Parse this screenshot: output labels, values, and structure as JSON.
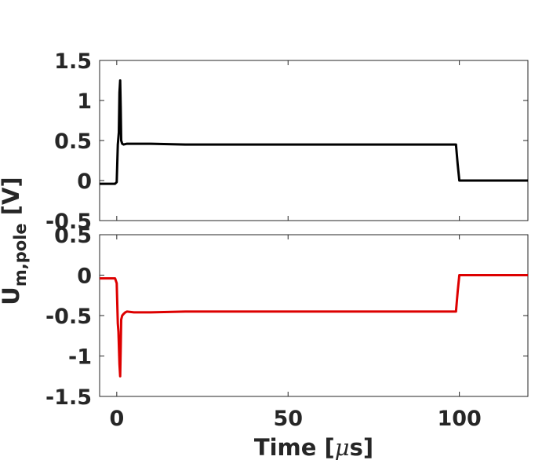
{
  "chart_data": {
    "type": "line",
    "ylabel_main": "U",
    "ylabel_sub": "m,pole",
    "ylabel_unit": " [V]",
    "xlabel_main": "Time [",
    "xlabel_mu": "μ",
    "xlabel_end": "s]",
    "xlim": [
      -5,
      120
    ],
    "xticks": [
      0,
      50,
      100
    ],
    "xtick_labels": [
      "0",
      "50",
      "100"
    ],
    "panels": [
      {
        "ylim": [
          -0.5,
          1.5
        ],
        "yticks": [
          -0.5,
          0,
          0.5,
          1,
          1.5
        ],
        "ytick_labels": [
          "-0.5",
          "0",
          "0.5",
          "1",
          "1.5"
        ],
        "color": "#000000",
        "x": [
          -5,
          -0.5,
          0,
          0.3,
          0.6,
          0.8,
          1.0,
          1.15,
          1.3,
          1.6,
          2,
          3,
          5,
          10,
          20,
          50,
          80,
          98,
          99,
          99.5,
          100,
          101,
          110,
          120
        ],
        "y": [
          -0.04,
          -0.04,
          -0.02,
          0.45,
          0.6,
          1.1,
          1.25,
          0.9,
          0.5,
          0.46,
          0.45,
          0.46,
          0.46,
          0.46,
          0.45,
          0.45,
          0.45,
          0.45,
          0.45,
          0.2,
          0.0,
          0.0,
          0.0,
          0.0
        ]
      },
      {
        "ylim": [
          -1.5,
          0.5
        ],
        "yticks": [
          -1.5,
          -1,
          -0.5,
          0,
          0.5
        ],
        "ytick_labels": [
          "-1.5",
          "-1",
          "-0.5",
          "0",
          "0.5"
        ],
        "color": "#dd0000",
        "x": [
          -5,
          -0.5,
          0,
          0.3,
          0.5,
          0.8,
          1.0,
          1.15,
          1.3,
          1.6,
          2,
          2.5,
          3,
          5,
          10,
          20,
          50,
          80,
          98,
          99,
          99.5,
          100,
          101,
          110,
          120
        ],
        "y": [
          -0.04,
          -0.04,
          -0.1,
          -0.6,
          -0.7,
          -1.1,
          -1.25,
          -0.9,
          -0.55,
          -0.5,
          -0.48,
          -0.46,
          -0.45,
          -0.46,
          -0.46,
          -0.45,
          -0.45,
          -0.45,
          -0.45,
          -0.45,
          -0.2,
          0.0,
          0.0,
          0.0,
          0.0
        ]
      }
    ]
  }
}
